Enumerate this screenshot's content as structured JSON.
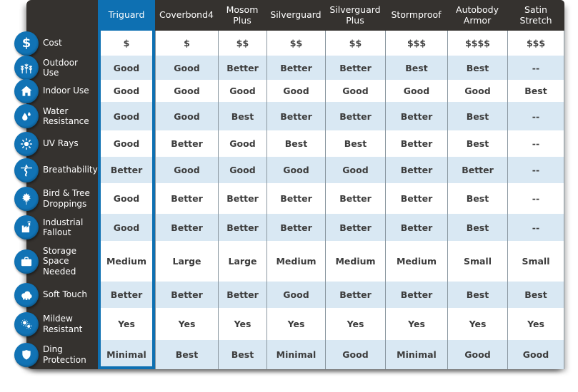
{
  "colors": {
    "accent_blue": "#0e70b2",
    "icon_circle_blue": "#1173b5",
    "panel_dark": "#35322f",
    "row_alt_blue": "#d9e8f3",
    "cell_text": "#3c3c3c",
    "grid_line": "#8a97a0",
    "header_text": "#ffffff"
  },
  "chart_data": {
    "type": "table",
    "title": "",
    "highlighted_column": "Triguard",
    "columns": [
      {
        "label": "Triguard",
        "highlighted": true
      },
      {
        "label": "Coverbond4",
        "highlighted": false
      },
      {
        "label": "Mosom Plus",
        "highlighted": false
      },
      {
        "label": "Silverguard",
        "highlighted": false
      },
      {
        "label": "Silverguard Plus",
        "highlighted": false
      },
      {
        "label": "Stormproof",
        "highlighted": false
      },
      {
        "label": "Autobody Armor",
        "highlighted": false
      },
      {
        "label": "Satin Stretch",
        "highlighted": false
      }
    ],
    "rows": [
      {
        "label": "Cost",
        "icon": "dollar-icon",
        "values": [
          "$",
          "$",
          "$$",
          "$$",
          "$$",
          "$$$",
          "$$$$",
          "$$$"
        ]
      },
      {
        "label": "Outdoor Use",
        "icon": "trees-icon",
        "values": [
          "Good",
          "Good",
          "Better",
          "Better",
          "Better",
          "Best",
          "Best",
          "--"
        ]
      },
      {
        "label": "Indoor Use",
        "icon": "house-icon",
        "values": [
          "Good",
          "Good",
          "Good",
          "Good",
          "Good",
          "Good",
          "Good",
          "Best"
        ]
      },
      {
        "label": "Water Resistance",
        "icon": "water-drop-icon",
        "values": [
          "Good",
          "Good",
          "Best",
          "Better",
          "Better",
          "Better",
          "Best",
          "--"
        ]
      },
      {
        "label": "UV Rays",
        "icon": "sun-icon",
        "values": [
          "Good",
          "Better",
          "Good",
          "Best",
          "Best",
          "Better",
          "Best",
          "--"
        ]
      },
      {
        "label": "Breathability",
        "icon": "airflow-icon",
        "values": [
          "Better",
          "Good",
          "Good",
          "Good",
          "Good",
          "Better",
          "Better",
          "--"
        ]
      },
      {
        "label": "Bird & Tree Droppings",
        "icon": "maple-leaf-icon",
        "values": [
          "Good",
          "Better",
          "Better",
          "Better",
          "Better",
          "Better",
          "Best",
          "--"
        ]
      },
      {
        "label": "Industrial Fallout",
        "icon": "factory-icon",
        "values": [
          "Good",
          "Better",
          "Better",
          "Better",
          "Better",
          "Better",
          "Best",
          "--"
        ]
      },
      {
        "label": "Storage Space Needed",
        "icon": "suitcase-icon",
        "values": [
          "Medium",
          "Large",
          "Large",
          "Medium",
          "Medium",
          "Medium",
          "Small",
          "Small"
        ]
      },
      {
        "label": "Soft Touch",
        "icon": "cloud-icon",
        "values": [
          "Better",
          "Better",
          "Better",
          "Good",
          "Better",
          "Better",
          "Best",
          "Best"
        ]
      },
      {
        "label": "Mildew Resistant",
        "icon": "spores-icon",
        "values": [
          "Yes",
          "Yes",
          "Yes",
          "Yes",
          "Yes",
          "Yes",
          "Yes",
          "Yes"
        ]
      },
      {
        "label": "Ding Protection",
        "icon": "shield-icon",
        "values": [
          "Minimal",
          "Best",
          "Best",
          "Minimal",
          "Good",
          "Minimal",
          "Good",
          "Good"
        ]
      }
    ]
  }
}
